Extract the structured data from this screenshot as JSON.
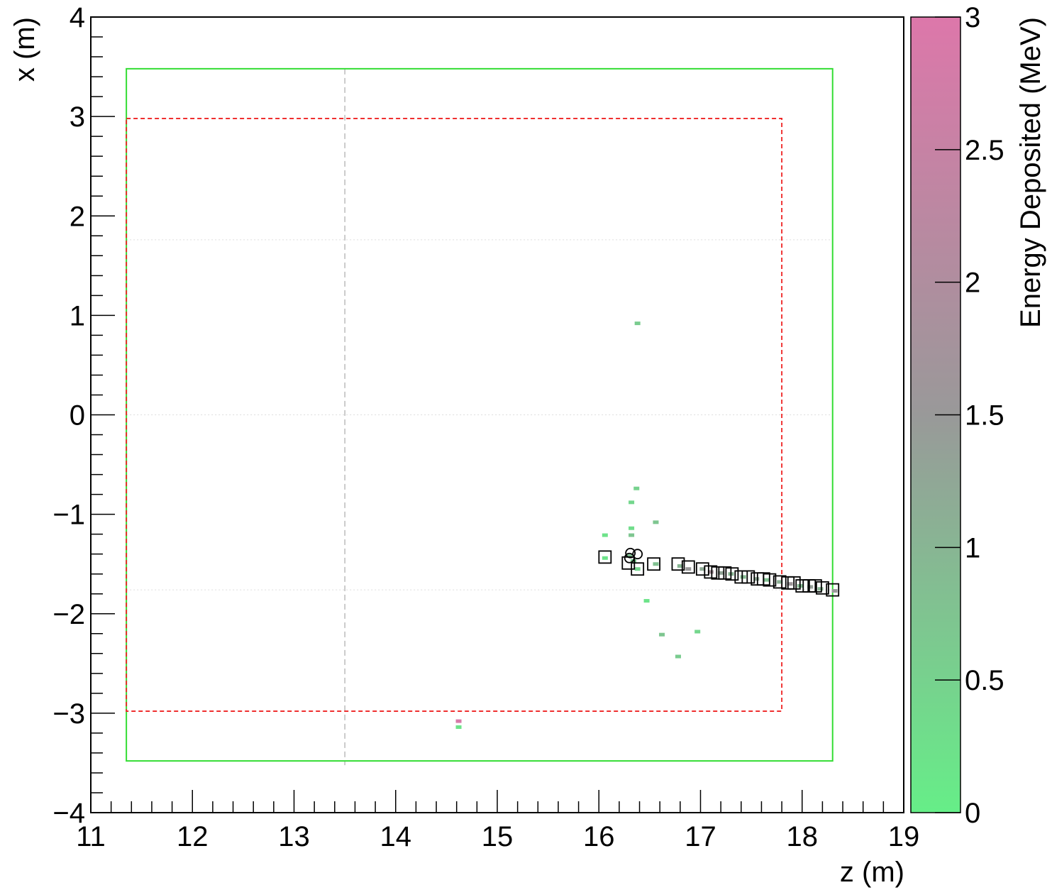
{
  "chart_data": {
    "type": "scatter",
    "xlabel": "z (m)",
    "ylabel": "x (m)",
    "xlim": [
      11,
      19
    ],
    "ylim": [
      -4,
      4
    ],
    "x_ticks": [
      "11",
      "12",
      "13",
      "14",
      "15",
      "16",
      "17",
      "18",
      "19"
    ],
    "y_ticks": [
      "4",
      "3",
      "2",
      "1",
      "0",
      "−1",
      "−2",
      "−3",
      "−4"
    ],
    "colorbar": {
      "label": "Energy Deposited (MeV)",
      "range": [
        0,
        3
      ],
      "ticks": [
        "0",
        "0.5",
        "1",
        "1.5",
        "2",
        "2.5",
        "3"
      ],
      "color_low": "#66ee88",
      "color_mid": "#999999",
      "color_high": "#dd77aa"
    },
    "outer_boundary": {
      "z": [
        11.35,
        18.3
      ],
      "x": [
        -3.48,
        3.48
      ],
      "color": "#33dd33"
    },
    "fiducial_boundary": {
      "z": [
        11.35,
        17.8
      ],
      "x": [
        -2.98,
        2.98
      ],
      "color": "#ee2222"
    },
    "vertical_reference_z": 13.5,
    "horizontal_reference_x": [
      1.76,
      0.0,
      -1.76
    ],
    "hits": [
      {
        "z": 16.38,
        "x": 0.92,
        "e": 0.6
      },
      {
        "z": 16.37,
        "x": -0.74,
        "e": 0.5
      },
      {
        "z": 16.32,
        "x": -0.88,
        "e": 0.4
      },
      {
        "z": 16.56,
        "x": -1.08,
        "e": 0.7
      },
      {
        "z": 16.32,
        "x": -1.14,
        "e": 0.3
      },
      {
        "z": 16.32,
        "x": -1.21,
        "e": 0.7
      },
      {
        "z": 16.06,
        "x": -1.21,
        "e": 0.2
      },
      {
        "z": 16.06,
        "x": -1.44,
        "e": 0.2
      },
      {
        "z": 16.3,
        "x": -1.42,
        "e": 0.8
      },
      {
        "z": 16.34,
        "x": -1.47,
        "e": 0.6
      },
      {
        "z": 16.38,
        "x": -1.55,
        "e": 0.4
      },
      {
        "z": 16.56,
        "x": -1.5,
        "e": 0.8
      },
      {
        "z": 16.8,
        "x": -1.52,
        "e": 1.0
      },
      {
        "z": 16.88,
        "x": -1.55,
        "e": 1.5
      },
      {
        "z": 17.02,
        "x": -1.55,
        "e": 1.2
      },
      {
        "z": 17.1,
        "x": -1.58,
        "e": 1.8
      },
      {
        "z": 17.2,
        "x": -1.59,
        "e": 1.3
      },
      {
        "z": 17.3,
        "x": -1.6,
        "e": 1.0
      },
      {
        "z": 17.42,
        "x": -1.63,
        "e": 0.9
      },
      {
        "z": 17.55,
        "x": -1.65,
        "e": 1.2
      },
      {
        "z": 17.65,
        "x": -1.66,
        "e": 0.8
      },
      {
        "z": 17.78,
        "x": -1.68,
        "e": 1.1
      },
      {
        "z": 17.88,
        "x": -1.7,
        "e": 1.6
      },
      {
        "z": 17.98,
        "x": -1.72,
        "e": 0.9
      },
      {
        "z": 18.08,
        "x": -1.73,
        "e": 1.4
      },
      {
        "z": 18.18,
        "x": -1.75,
        "e": 1.0
      },
      {
        "z": 18.32,
        "x": -1.77,
        "e": 1.5
      },
      {
        "z": 16.47,
        "x": -1.87,
        "e": 0.2
      },
      {
        "z": 16.97,
        "x": -2.18,
        "e": 0.4
      },
      {
        "z": 16.62,
        "x": -2.21,
        "e": 0.7
      },
      {
        "z": 16.78,
        "x": -2.43,
        "e": 0.6
      },
      {
        "z": 14.62,
        "x": -3.08,
        "e": 2.9
      },
      {
        "z": 14.62,
        "x": -3.14,
        "e": 0.2
      }
    ],
    "squares": [
      {
        "z": 16.06,
        "x": -1.43
      },
      {
        "z": 16.29,
        "x": -1.49
      },
      {
        "z": 16.38,
        "x": -1.55
      },
      {
        "z": 16.54,
        "x": -1.5
      },
      {
        "z": 16.78,
        "x": -1.5
      },
      {
        "z": 16.88,
        "x": -1.53
      },
      {
        "z": 17.02,
        "x": -1.55
      },
      {
        "z": 17.1,
        "x": -1.58
      },
      {
        "z": 17.17,
        "x": -1.59
      },
      {
        "z": 17.24,
        "x": -1.59
      },
      {
        "z": 17.31,
        "x": -1.6
      },
      {
        "z": 17.4,
        "x": -1.63
      },
      {
        "z": 17.47,
        "x": -1.63
      },
      {
        "z": 17.56,
        "x": -1.65
      },
      {
        "z": 17.62,
        "x": -1.65
      },
      {
        "z": 17.68,
        "x": -1.66
      },
      {
        "z": 17.78,
        "x": -1.68
      },
      {
        "z": 17.86,
        "x": -1.69
      },
      {
        "z": 17.92,
        "x": -1.69
      },
      {
        "z": 18.0,
        "x": -1.72
      },
      {
        "z": 18.07,
        "x": -1.72
      },
      {
        "z": 18.13,
        "x": -1.72
      },
      {
        "z": 18.2,
        "x": -1.74
      },
      {
        "z": 18.3,
        "x": -1.76
      }
    ],
    "circles": [
      {
        "z": 16.31,
        "x": -1.39
      },
      {
        "z": 16.38,
        "x": -1.4
      },
      {
        "z": 16.3,
        "x": -1.44
      }
    ],
    "grid": false
  }
}
